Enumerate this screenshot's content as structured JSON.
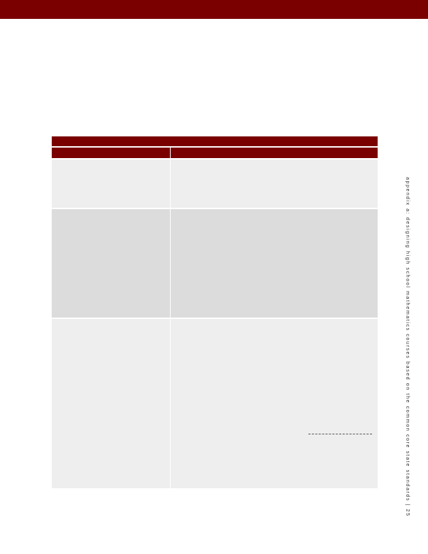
{
  "side_caption": "appendix a: designing high school mathematics courses based on the common core state standards | 25"
}
